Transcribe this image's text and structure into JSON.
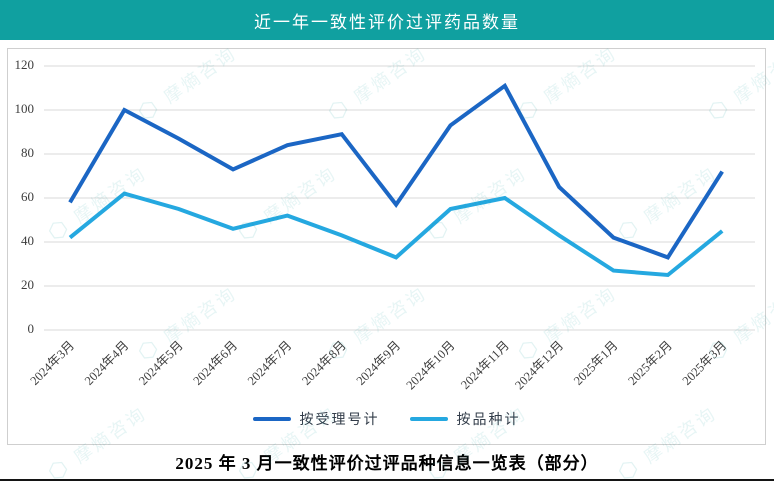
{
  "header": {
    "title": "近一年一致性评价过评药品数量",
    "background_color": "#10A0A0",
    "text_color": "#FFFFFF"
  },
  "chart_data": {
    "type": "line",
    "title": "近一年一致性评价过评药品数量",
    "categories": [
      "2024年3月",
      "2024年4月",
      "2024年5月",
      "2024年6月",
      "2024年7月",
      "2024年8月",
      "2024年9月",
      "2024年10月",
      "2024年11月",
      "2024年12月",
      "2025年1月",
      "2025年2月",
      "2025年3月"
    ],
    "series": [
      {
        "name": "按受理号计",
        "color": "#1B66C4",
        "values": [
          58,
          100,
          87,
          73,
          84,
          89,
          57,
          93,
          111,
          65,
          42,
          33,
          72
        ]
      },
      {
        "name": "按品种计",
        "color": "#25A8E0",
        "values": [
          42,
          62,
          55,
          46,
          52,
          43,
          33,
          55,
          60,
          43,
          27,
          25,
          45
        ]
      }
    ],
    "xlabel": "",
    "ylabel": "",
    "ylim": [
      0,
      120
    ],
    "ytick_step": 20,
    "yticks": [
      "0",
      "20",
      "40",
      "60",
      "80",
      "100",
      "120"
    ],
    "grid": true,
    "gridline_color": "#D9D9D9",
    "axis_label_color": "#3D3D3D",
    "legend_position": "bottom"
  },
  "footer": {
    "table_title": "2025 年 3 月一致性评价过评品种信息一览表（部分）"
  },
  "watermark": {
    "text": "摩熵咨询",
    "logo": "⬡"
  }
}
